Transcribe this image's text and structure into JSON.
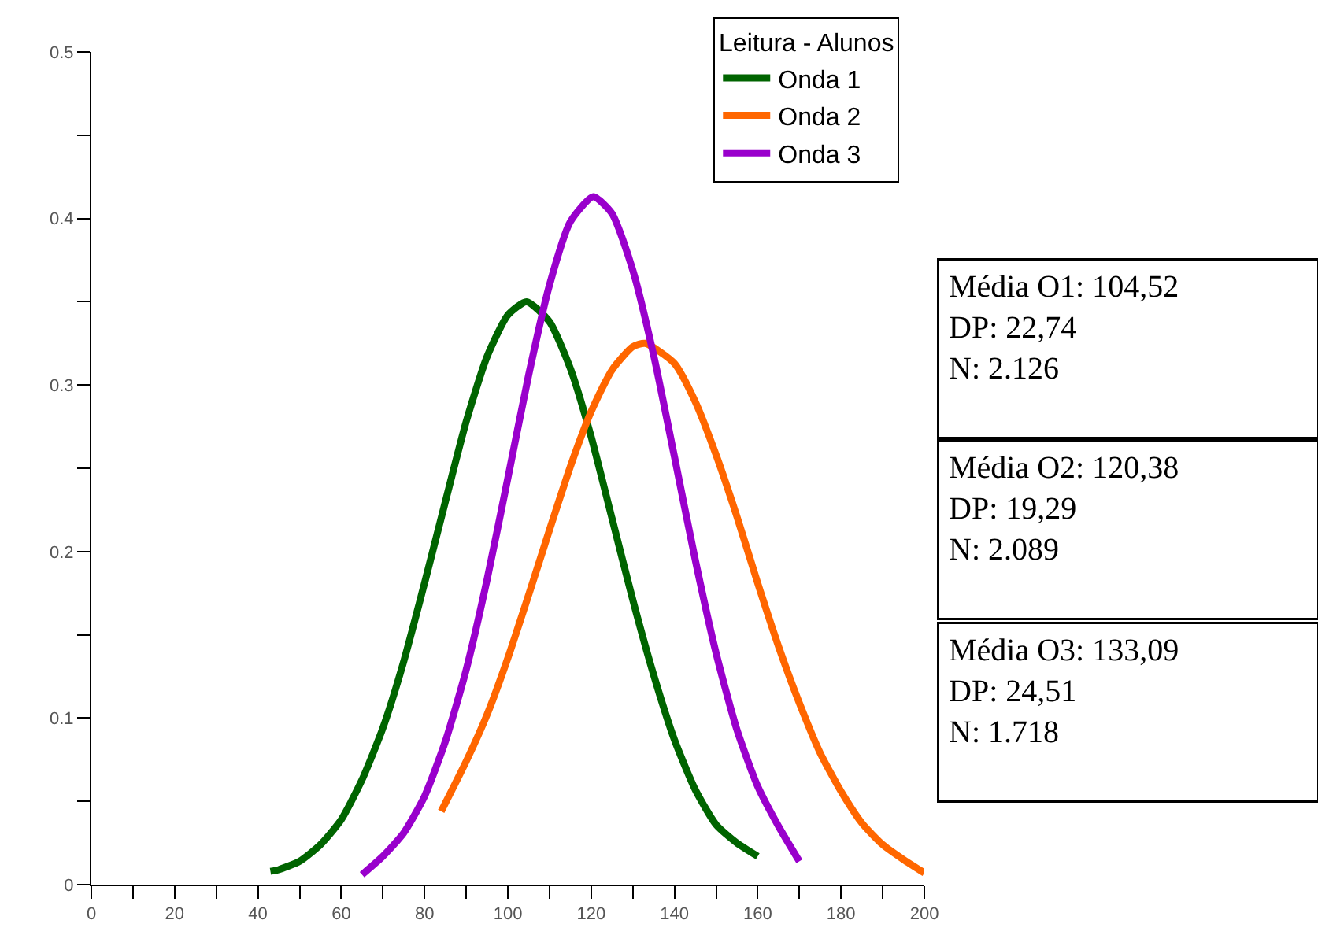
{
  "chart_data": {
    "type": "line",
    "legend_title": "Leitura - Alunos",
    "series": [
      {
        "name": "Onda 1",
        "color": "#006400",
        "x": [
          43,
          45,
          50,
          55,
          60,
          65,
          70,
          75,
          80,
          85,
          90,
          95,
          100,
          104.5,
          110,
          115,
          120,
          125,
          130,
          135,
          140,
          145,
          150,
          155,
          160
        ],
        "values": [
          0.008,
          0.009,
          0.014,
          0.024,
          0.039,
          0.063,
          0.094,
          0.134,
          0.181,
          0.23,
          0.278,
          0.317,
          0.342,
          0.35,
          0.338,
          0.31,
          0.269,
          0.22,
          0.171,
          0.126,
          0.087,
          0.057,
          0.036,
          0.025,
          0.017
        ]
      },
      {
        "name": "Onda 2",
        "color": "#ff6600",
        "x": [
          84,
          90,
          95,
          100,
          105,
          110,
          115,
          120,
          125,
          130,
          133,
          140,
          145,
          150,
          155,
          160,
          165,
          170,
          175,
          180,
          185,
          190,
          195,
          200
        ],
        "values": [
          0.044,
          0.074,
          0.102,
          0.136,
          0.174,
          0.213,
          0.251,
          0.284,
          0.309,
          0.323,
          0.325,
          0.313,
          0.29,
          0.258,
          0.221,
          0.181,
          0.143,
          0.109,
          0.079,
          0.056,
          0.037,
          0.024,
          0.015,
          0.007
        ]
      },
      {
        "name": "Onda 3",
        "color": "#9900cc",
        "x": [
          65,
          70,
          75,
          80,
          85,
          90,
          95,
          100,
          105,
          110,
          115,
          120.5,
          125,
          130,
          135,
          140,
          145,
          150,
          155,
          160,
          165,
          170
        ],
        "values": [
          0.006,
          0.017,
          0.031,
          0.053,
          0.086,
          0.129,
          0.183,
          0.244,
          0.306,
          0.36,
          0.398,
          0.413,
          0.403,
          0.369,
          0.318,
          0.257,
          0.195,
          0.139,
          0.093,
          0.059,
          0.035,
          0.014
        ]
      }
    ],
    "xlim": [
      0,
      200
    ],
    "xticks": [
      0,
      {
        "value": 10,
        "label": null
      },
      20,
      {
        "value": 30,
        "label": null
      },
      40,
      {
        "value": 50,
        "label": null
      },
      60,
      {
        "value": 70,
        "label": null
      },
      80,
      {
        "value": 90,
        "label": null
      },
      100,
      {
        "value": 110,
        "label": null
      },
      120,
      {
        "value": 130,
        "label": null
      },
      140,
      {
        "value": 150,
        "label": null
      },
      160,
      {
        "value": 170,
        "label": null
      },
      180,
      {
        "value": 190,
        "label": null
      },
      200
    ],
    "ylim": [
      0,
      0.5
    ],
    "yticks": [
      0,
      {
        "value": 0.05,
        "label": null
      },
      0.1,
      {
        "value": 0.15,
        "label": null
      },
      0.2,
      {
        "value": 0.25,
        "label": null
      },
      0.3,
      {
        "value": 0.35,
        "label": null
      },
      0.4,
      {
        "value": 0.45,
        "label": null
      },
      0.5
    ],
    "grid": false,
    "legend": "top right",
    "marker": "none",
    "line_style": "solid",
    "annotations": [
      "Média O1: 104,52\nDP: 22,74\nN: 2.126",
      "Média O2: 120,38\nDP: 19,29\nN: 2.089",
      "Média O3: 133,09\nDP: 24,51\nN: 1.718"
    ]
  }
}
